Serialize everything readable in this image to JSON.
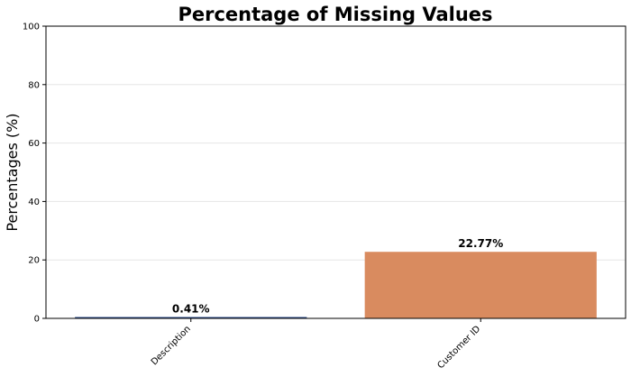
{
  "chart_data": {
    "type": "bar",
    "title": "Percentage of Missing Values",
    "xlabel": "",
    "ylabel": "Percentages (%)",
    "ylim": [
      0,
      100
    ],
    "yticks": [
      0,
      20,
      40,
      60,
      80,
      100
    ],
    "categories": [
      "Description",
      "Customer ID"
    ],
    "values": [
      0.41,
      22.77
    ],
    "value_labels": [
      "0.41%",
      "22.77%"
    ],
    "colors": [
      "#2a4a8a",
      "#d98b5f"
    ],
    "grid": "horizontal",
    "legend": "none"
  }
}
